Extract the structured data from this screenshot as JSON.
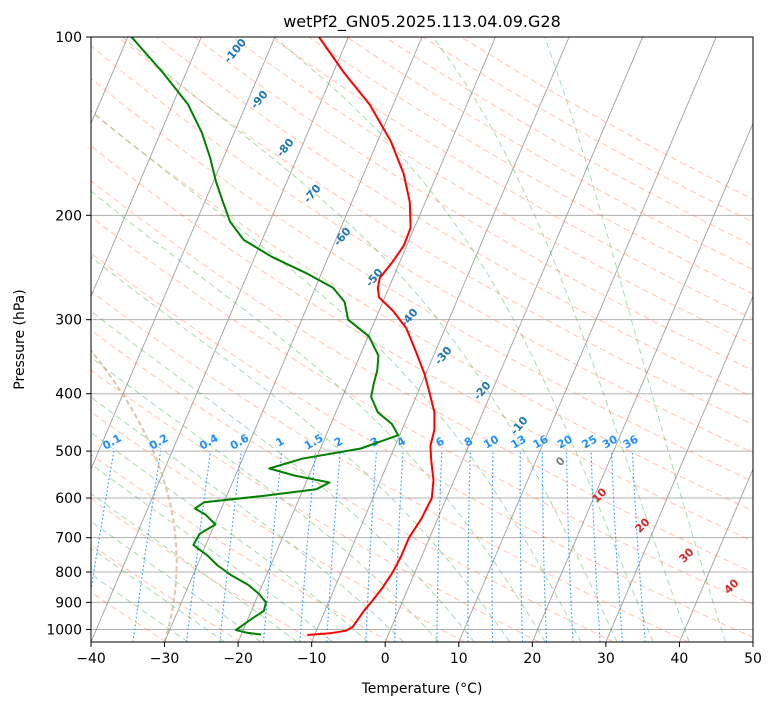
{
  "chart_data": {
    "type": "line",
    "title": "wetPf2_GN05.2025.113.04.09.G28",
    "xlabel": "Temperature (°C)",
    "ylabel": "Pressure (hPa)",
    "xlim": [
      -40,
      50
    ],
    "ylim": [
      1050,
      100
    ],
    "y_scale": "log",
    "x_ticks": [
      -40,
      -30,
      -20,
      -10,
      0,
      10,
      20,
      30,
      40,
      50
    ],
    "y_ticks": [
      100,
      200,
      300,
      400,
      500,
      600,
      700,
      800,
      900,
      1000
    ],
    "grid": true,
    "skew_t": true,
    "series": [
      {
        "id": "temperature",
        "color": "#ff0000",
        "points": [
          [
            1022,
            -11.0
          ],
          [
            1015,
            -8.0
          ],
          [
            1005,
            -6.0
          ],
          [
            990,
            -5.3
          ],
          [
            960,
            -5.0
          ],
          [
            930,
            -4.7
          ],
          [
            900,
            -4.2
          ],
          [
            850,
            -3.5
          ],
          [
            800,
            -3.0
          ],
          [
            750,
            -2.8
          ],
          [
            700,
            -2.8
          ],
          [
            650,
            -2.2
          ],
          [
            600,
            -2.0
          ],
          [
            560,
            -2.8
          ],
          [
            520,
            -4.2
          ],
          [
            490,
            -5.2
          ],
          [
            460,
            -5.6
          ],
          [
            430,
            -6.6
          ],
          [
            400,
            -8.3
          ],
          [
            370,
            -10.2
          ],
          [
            340,
            -12.6
          ],
          [
            310,
            -15.3
          ],
          [
            290,
            -18.1
          ],
          [
            275,
            -20.8
          ],
          [
            265,
            -21.5
          ],
          [
            255,
            -21.8
          ],
          [
            240,
            -21.0
          ],
          [
            225,
            -20.4
          ],
          [
            210,
            -20.5
          ],
          [
            190,
            -22.1
          ],
          [
            170,
            -24.6
          ],
          [
            150,
            -28.2
          ],
          [
            130,
            -33.2
          ],
          [
            115,
            -38.5
          ],
          [
            100,
            -44.0
          ]
        ]
      },
      {
        "id": "dewpoint",
        "color": "#008000",
        "points": [
          [
            1020,
            -17.3
          ],
          [
            1013,
            -19.3
          ],
          [
            1002,
            -21.0
          ],
          [
            985,
            -20.4
          ],
          [
            960,
            -19.5
          ],
          [
            930,
            -18.3
          ],
          [
            900,
            -18.5
          ],
          [
            870,
            -20.0
          ],
          [
            840,
            -22.0
          ],
          [
            810,
            -24.8
          ],
          [
            780,
            -27.2
          ],
          [
            750,
            -29.2
          ],
          [
            720,
            -31.7
          ],
          [
            690,
            -31.5
          ],
          [
            665,
            -29.9
          ],
          [
            640,
            -31.8
          ],
          [
            625,
            -33.6
          ],
          [
            610,
            -32.7
          ],
          [
            595,
            -25.0
          ],
          [
            580,
            -18.2
          ],
          [
            565,
            -16.8
          ],
          [
            550,
            -21.9
          ],
          [
            535,
            -25.8
          ],
          [
            515,
            -21.9
          ],
          [
            495,
            -14.5
          ],
          [
            470,
            -10.2
          ],
          [
            450,
            -11.7
          ],
          [
            430,
            -14.3
          ],
          [
            405,
            -16.1
          ],
          [
            385,
            -16.5
          ],
          [
            365,
            -16.8
          ],
          [
            345,
            -17.5
          ],
          [
            320,
            -19.9
          ],
          [
            300,
            -23.7
          ],
          [
            280,
            -25.2
          ],
          [
            265,
            -27.6
          ],
          [
            250,
            -32.2
          ],
          [
            235,
            -37.7
          ],
          [
            220,
            -42.5
          ],
          [
            205,
            -45.4
          ],
          [
            190,
            -47.5
          ],
          [
            175,
            -49.7
          ],
          [
            160,
            -51.8
          ],
          [
            145,
            -54.4
          ],
          [
            130,
            -57.9
          ],
          [
            115,
            -63.1
          ],
          [
            100,
            -69.5
          ]
        ]
      }
    ],
    "dry_adiabat_labels": [
      "-100",
      "-90",
      "-80",
      "-70",
      "-60",
      "-50",
      "-40",
      "-30",
      "-20",
      "-10"
    ],
    "mixing_ratio_labels": [
      "0.1",
      "0.2",
      "0.4",
      "0.6",
      "1",
      "1.5",
      "2",
      "3",
      "4",
      "6",
      "8",
      "10",
      "13",
      "16",
      "20",
      "25",
      "30",
      "36"
    ],
    "moist_adiabat_labels": [
      "0",
      "10",
      "20",
      "30",
      "40"
    ],
    "colors": {
      "dry_adiabat": "#ff7f50",
      "moist_adiabat": "#2ca02c",
      "mixing_ratio": "#1e90ff",
      "isotherm": "#a0a0a0",
      "dry_label": "#1f77b4",
      "moist_label_cold": "#808080",
      "moist_label_warm": "#d62728",
      "reference": "#c8a27a"
    }
  }
}
